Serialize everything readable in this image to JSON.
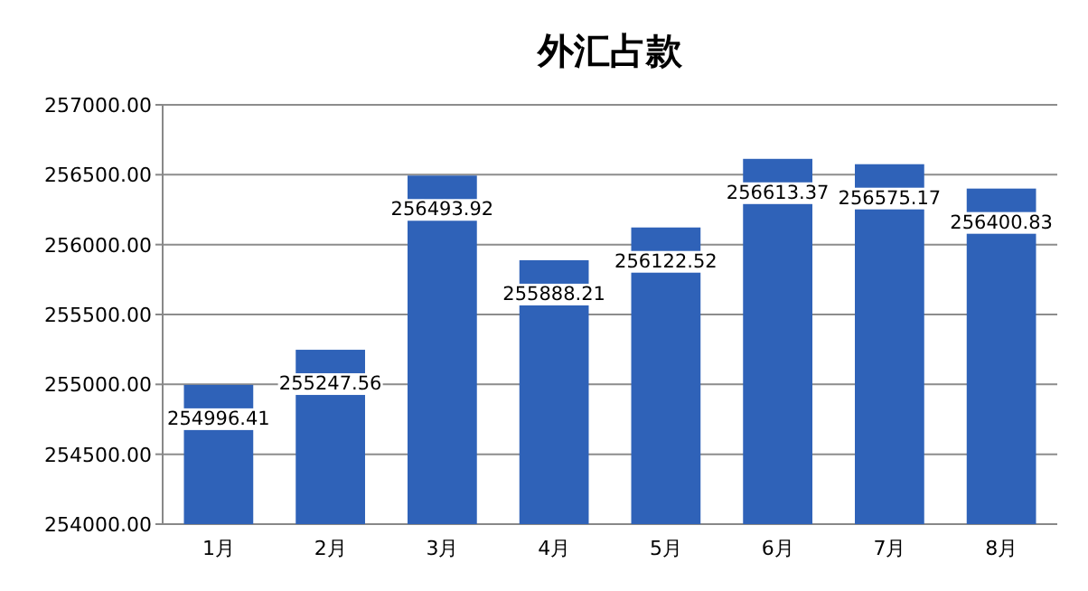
{
  "chart_data": {
    "type": "bar",
    "title": "外汇占款",
    "categories": [
      "1月",
      "2月",
      "3月",
      "4月",
      "5月",
      "6月",
      "7月",
      "8月"
    ],
    "values": [
      254996.41,
      255247.56,
      256493.92,
      255888.21,
      256122.52,
      256613.37,
      256575.17,
      256400.83
    ],
    "color": "#2f62b8",
    "data_labels": true,
    "grid": "y",
    "ylim": [
      254000,
      257000
    ],
    "yticks": [
      {
        "value": 254000,
        "label": "254000.00"
      },
      {
        "value": 254500,
        "label": "254500.00"
      },
      {
        "value": 255000,
        "label": "255000.00"
      },
      {
        "value": 255500,
        "label": "255500.00"
      },
      {
        "value": 256000,
        "label": "256000.00"
      },
      {
        "value": 256500,
        "label": "256500.00"
      },
      {
        "value": 257000,
        "label": "257000.00"
      }
    ]
  }
}
